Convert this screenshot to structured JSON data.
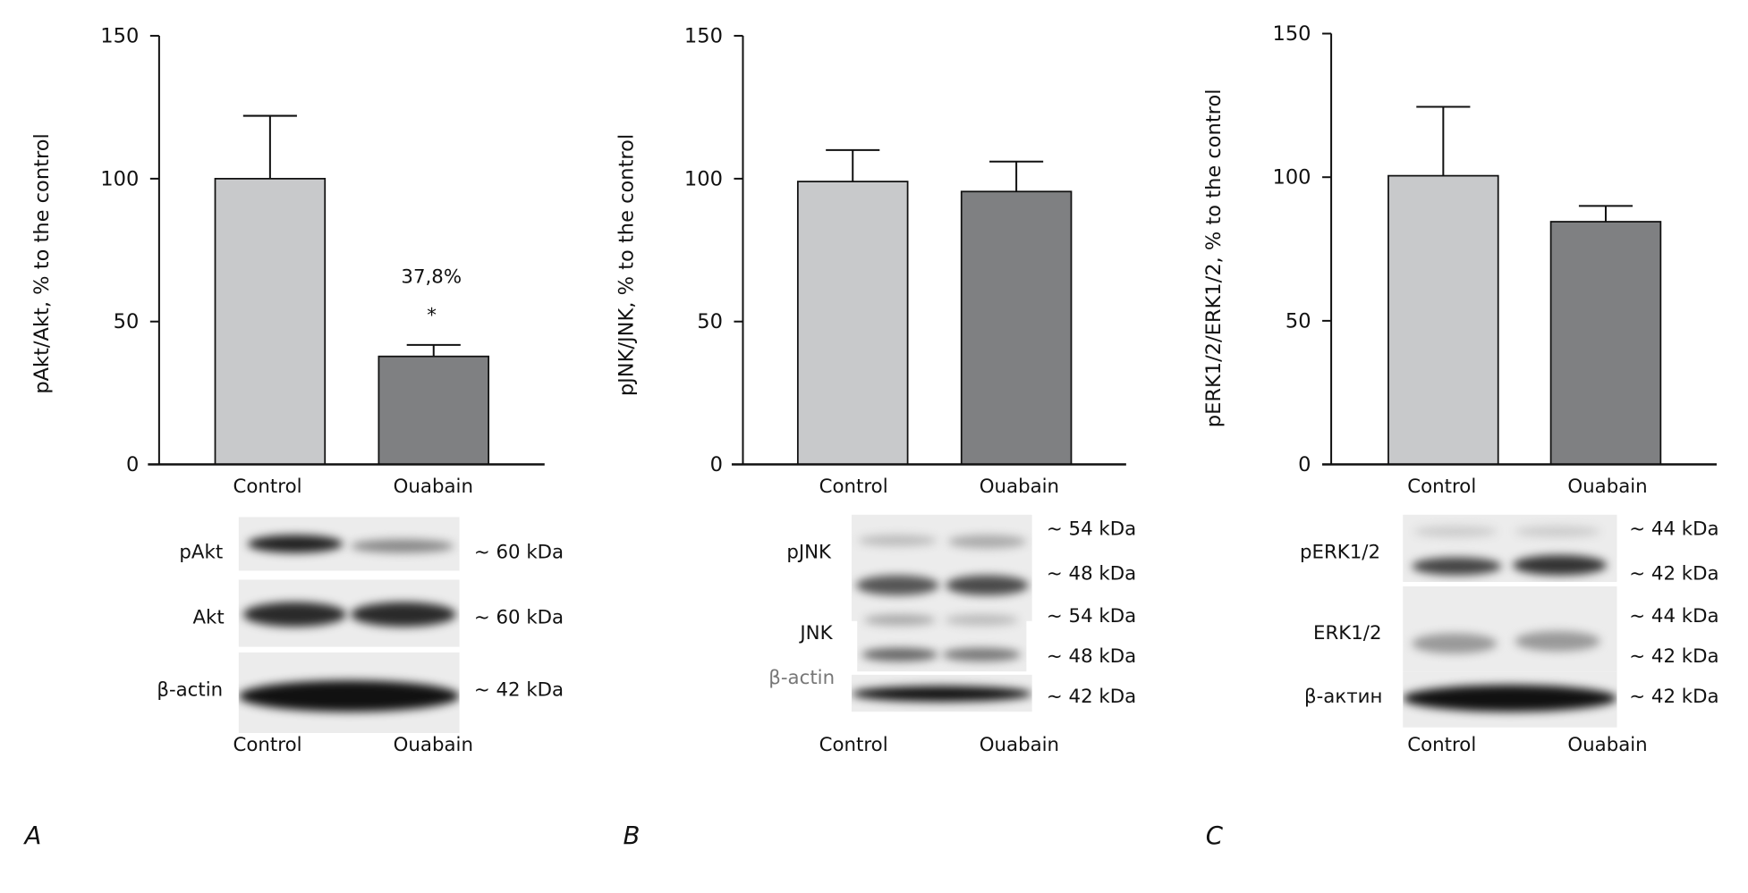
{
  "chart_data": [
    {
      "type": "bar",
      "panel": "A",
      "ylabel": "pAkt/Akt, % to the control",
      "ylim": [
        0,
        150
      ],
      "yticks": [
        0,
        50,
        100,
        150
      ],
      "categories": [
        "Control",
        "Ouabain"
      ],
      "values": [
        100,
        37.8
      ],
      "errors": [
        22,
        4
      ],
      "colors": [
        "#c8c9cb",
        "#7f8082"
      ],
      "annotations": [
        "37,8%",
        "*"
      ]
    },
    {
      "type": "bar",
      "panel": "B",
      "ylabel": "pJNK/JNK, % to the control",
      "ylim": [
        0,
        150
      ],
      "yticks": [
        0,
        50,
        100,
        150
      ],
      "categories": [
        "Control",
        "Ouabain"
      ],
      "values": [
        99,
        95.5
      ],
      "errors": [
        11,
        10.5
      ],
      "colors": [
        "#c8c9cb",
        "#7f8082"
      ]
    },
    {
      "type": "bar",
      "panel": "C",
      "ylabel": "pERK1/2/ERK1/2, % to the control",
      "ylim": [
        0,
        150
      ],
      "yticks": [
        0,
        50,
        100,
        150
      ],
      "categories": [
        "Control",
        "Ouabain"
      ],
      "values": [
        100.5,
        84.5
      ],
      "errors": [
        24,
        5.5
      ],
      "colors": [
        "#c8c9cb",
        "#7f8082"
      ]
    }
  ],
  "blots": [
    {
      "rows": [
        {
          "label": "pAkt",
          "kda": [
            "~ 60 kDa"
          ]
        },
        {
          "label": "Akt",
          "kda": [
            "~ 60 kDa"
          ]
        },
        {
          "label": "β-actin",
          "kda": [
            "~ 42 kDa"
          ]
        }
      ],
      "lanes": [
        "Control",
        "Ouabain"
      ]
    },
    {
      "rows": [
        {
          "label": "pJNK",
          "kda": [
            "~ 54 kDa",
            "~ 48 kDa"
          ]
        },
        {
          "label": "JNK",
          "kda": [
            "~ 54  kDa",
            "~ 48  kDa"
          ]
        },
        {
          "label": "β-actin",
          "kda": [
            "~ 42  kDa"
          ]
        }
      ],
      "lanes": [
        "Control",
        "Ouabain"
      ]
    },
    {
      "rows": [
        {
          "label": "pERK1/2",
          "kda": [
            "~ 44 kDa",
            "~ 42 kDa"
          ]
        },
        {
          "label": "ERK1/2",
          "kda": [
            "~ 44 kDa",
            "~ 42 kDa"
          ]
        },
        {
          "label": "β-актин",
          "kda": [
            "~ 42 kDa"
          ]
        }
      ],
      "lanes": [
        "Control",
        "Ouabain"
      ]
    }
  ],
  "panels": [
    "A",
    "B",
    "C"
  ]
}
